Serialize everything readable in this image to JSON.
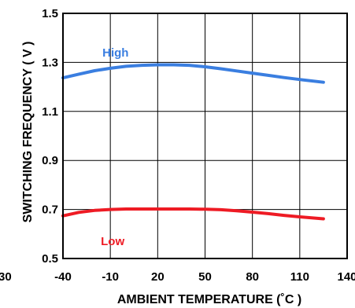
{
  "chart_data": {
    "type": "line",
    "xlabel": "AMBIENT TEMPERATURE (˚C )",
    "ylabel": "SWITCHING FREQUENCY ( V )",
    "xlim": [
      -40,
      140
    ],
    "ylim": [
      0.5,
      1.5
    ],
    "x_ticks": [
      -40,
      -10,
      20,
      50,
      80,
      110,
      140
    ],
    "x_tick_labels": [
      "-40",
      "-10",
      "20",
      "50",
      "80",
      "110",
      "140"
    ],
    "y_ticks": [
      0.5,
      0.7,
      0.9,
      1.1,
      1.3,
      1.5
    ],
    "y_tick_labels": [
      "0.5",
      "0.7",
      "0.9",
      "1.1",
      "1.3",
      "1.5"
    ],
    "left_partial_tick": "30",
    "grid": true,
    "series": [
      {
        "name": "High",
        "color": "#3a7ee0",
        "x": [
          -40,
          -30,
          -20,
          -10,
          0,
          10,
          20,
          30,
          40,
          50,
          60,
          70,
          80,
          90,
          100,
          110,
          125
        ],
        "y": [
          1.237,
          1.252,
          1.266,
          1.276,
          1.284,
          1.288,
          1.29,
          1.29,
          1.288,
          1.282,
          1.274,
          1.265,
          1.256,
          1.247,
          1.238,
          1.23,
          1.219
        ]
      },
      {
        "name": "Low",
        "color": "#ee1b24",
        "x": [
          -40,
          -30,
          -20,
          -10,
          0,
          10,
          20,
          30,
          40,
          50,
          60,
          70,
          80,
          90,
          100,
          110,
          125
        ],
        "y": [
          0.674,
          0.688,
          0.696,
          0.7,
          0.702,
          0.702,
          0.702,
          0.702,
          0.702,
          0.701,
          0.699,
          0.695,
          0.689,
          0.683,
          0.676,
          0.67,
          0.662
        ]
      }
    ]
  }
}
